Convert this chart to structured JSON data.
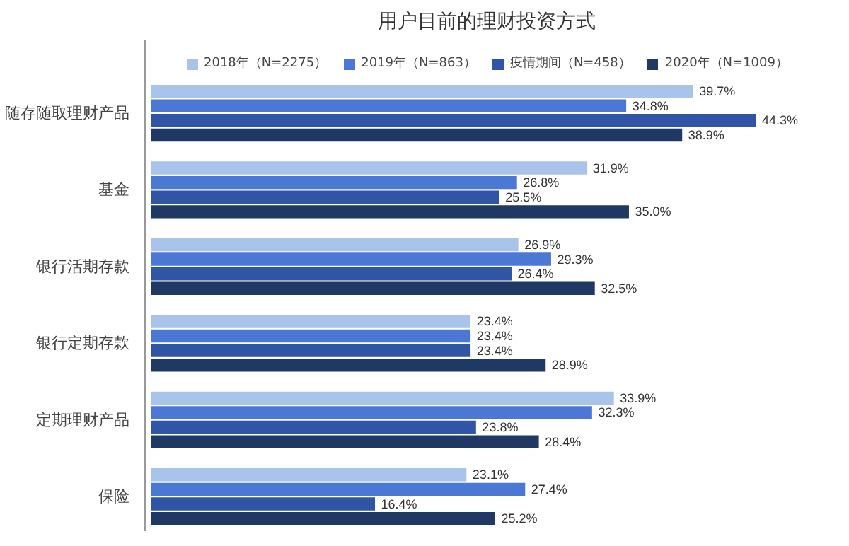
{
  "chart_data": {
    "type": "bar",
    "orientation": "horizontal",
    "title": "用户目前的理财投资方式",
    "categories": [
      "随存随取理财产品",
      "基金",
      "银行活期存款",
      "银行定期存款",
      "定期理财产品",
      "保险"
    ],
    "series": [
      {
        "name": "2018年（N=2275）",
        "color": "#a9c4eb",
        "values": [
          39.7,
          31.9,
          26.9,
          23.4,
          33.9,
          23.1
        ],
        "value_labels": [
          "39.7%",
          "31.9%",
          "26.9%",
          "23.4%",
          "33.9%",
          "23.1%"
        ]
      },
      {
        "name": "2019年（N=863）",
        "color": "#4a78d4",
        "values": [
          34.8,
          26.8,
          29.3,
          23.4,
          32.3,
          27.4
        ],
        "value_labels": [
          "34.8%",
          "26.8%",
          "29.3%",
          "23.4%",
          "32.3%",
          "27.4%"
        ]
      },
      {
        "name": "疫情期间（N=458）",
        "color": "#2f55a4",
        "values": [
          44.3,
          25.5,
          26.4,
          23.4,
          23.8,
          16.4
        ],
        "value_labels": [
          "44.3%",
          "25.5%",
          "26.4%",
          "23.4%",
          "23.8%",
          "16.4%"
        ]
      },
      {
        "name": "2020年（N=1009）",
        "color": "#1f3864",
        "values": [
          38.9,
          35.0,
          32.5,
          28.9,
          28.4,
          25.2
        ],
        "value_labels": [
          "38.9%",
          "35.0%",
          "32.5%",
          "28.9%",
          "28.4%",
          "25.2%"
        ]
      }
    ],
    "legend": "top",
    "grid": false,
    "tick_labels": "y"
  }
}
